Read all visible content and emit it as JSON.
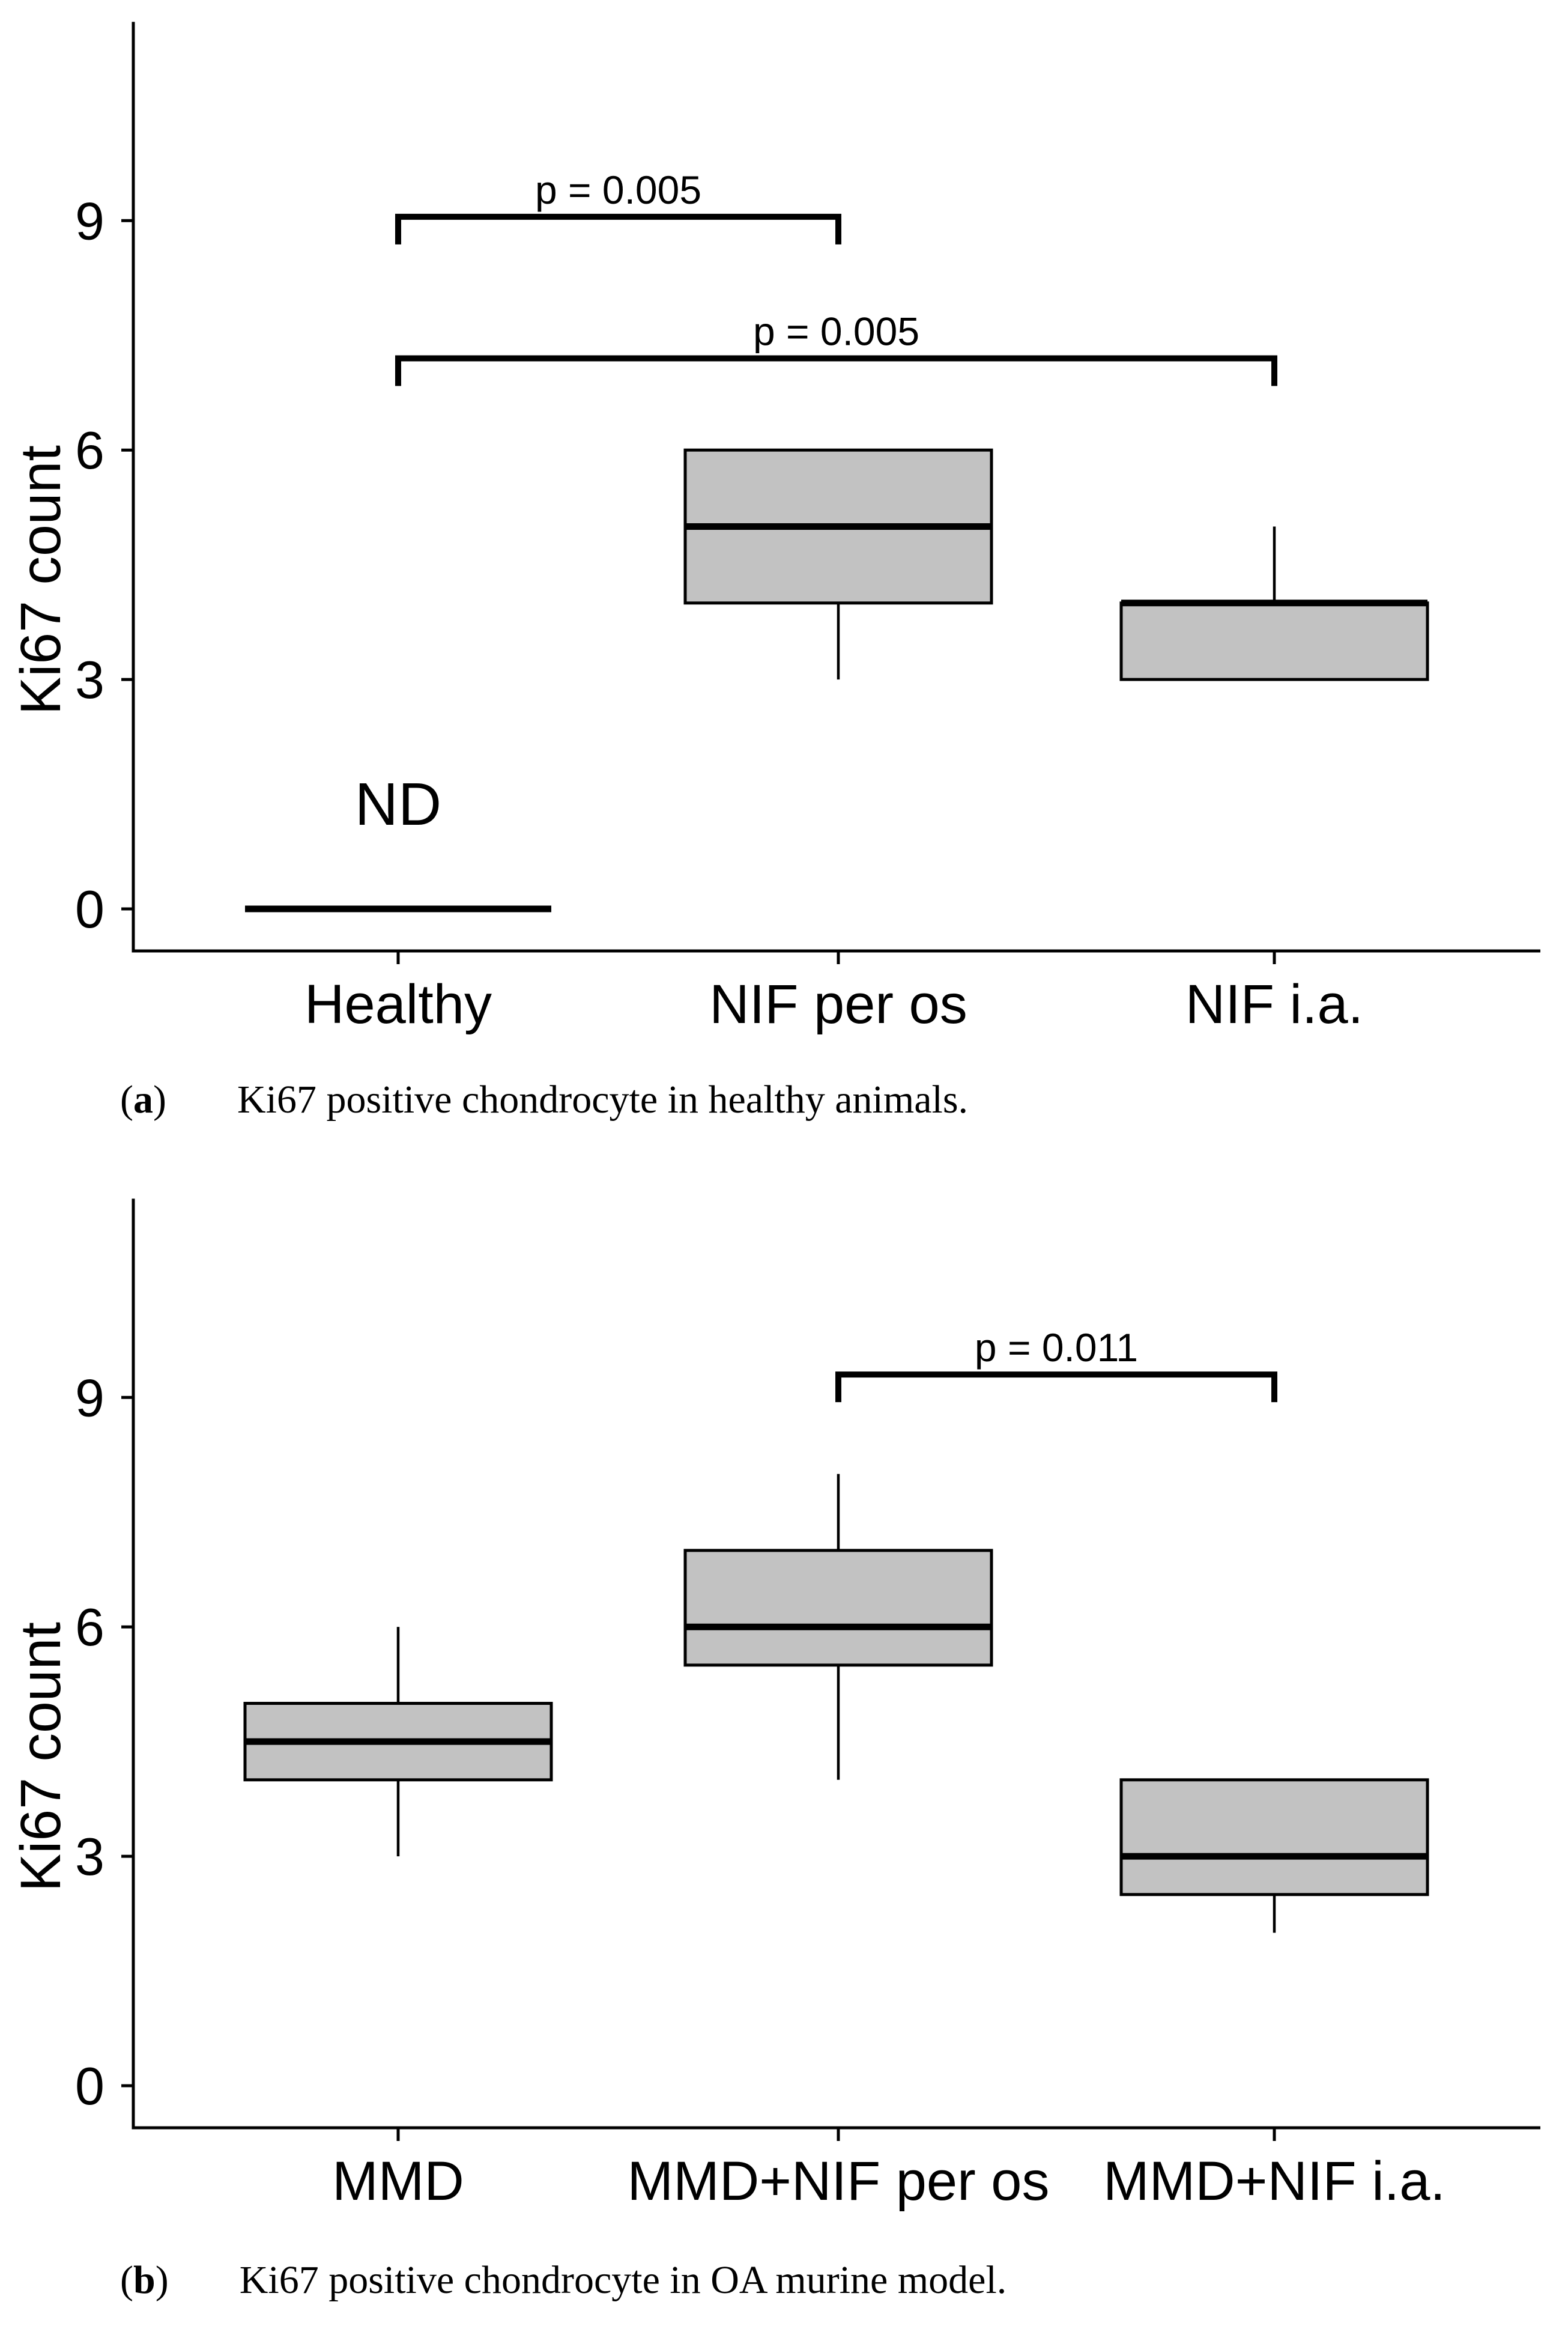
{
  "colors": {
    "background": "#ffffff",
    "line": "#000000",
    "box_fill": "#c2c2c2"
  },
  "chart_data": [
    {
      "id": "a",
      "type": "boxplot",
      "ylabel": "Ki67 count",
      "yticks": [
        0,
        3,
        6,
        9
      ],
      "ylim": [
        -0.55,
        11.6
      ],
      "grid": "off",
      "categories": [
        "Healthy",
        "NIF per os",
        "NIF i.a."
      ],
      "boxes": [
        {
          "category": "Healthy",
          "nd": true,
          "annotation": "ND",
          "line_at": 0
        },
        {
          "category": "NIF per os",
          "q1": 4,
          "median": 5,
          "q3": 6,
          "whisker_low": 3,
          "whisker_high": null
        },
        {
          "category": "NIF i.a.",
          "q1": 3,
          "median": 4,
          "q3": 4,
          "whisker_low": null,
          "whisker_high": 5
        }
      ],
      "significance_brackets": [
        {
          "from": "Healthy",
          "to": "NIF per os",
          "y": 9.05,
          "label": "p = 0.005"
        },
        {
          "from": "Healthy",
          "to": "NIF i.a.",
          "y": 7.2,
          "label": "p = 0.005"
        }
      ],
      "caption": {
        "open": "(",
        "letter": "a",
        "close": ")",
        "text": "Ki67 positive chondrocyte in healthy animals."
      }
    },
    {
      "id": "b",
      "type": "boxplot",
      "ylabel": "Ki67 count",
      "yticks": [
        0,
        3,
        6,
        9
      ],
      "ylim": [
        -0.55,
        11.6
      ],
      "grid": "off",
      "categories": [
        "MMD",
        "MMD+NIF per os",
        "MMD+NIF i.a."
      ],
      "boxes": [
        {
          "category": "MMD",
          "q1": 4,
          "median": 4.5,
          "q3": 5,
          "whisker_low": 3,
          "whisker_high": 6
        },
        {
          "category": "MMD+NIF per os",
          "q1": 5.5,
          "median": 6,
          "q3": 7,
          "whisker_low": 4,
          "whisker_high": 8
        },
        {
          "category": "MMD+NIF i.a.",
          "q1": 2.5,
          "median": 3,
          "q3": 4,
          "whisker_low": 2,
          "whisker_high": null
        }
      ],
      "significance_brackets": [
        {
          "from": "MMD+NIF per os",
          "to": "MMD+NIF i.a.",
          "y": 9.3,
          "label": "p = 0.011"
        }
      ],
      "caption": {
        "open": "(",
        "letter": "b",
        "close": ")",
        "text": "Ki67 positive chondrocyte in OA murine model."
      }
    }
  ]
}
